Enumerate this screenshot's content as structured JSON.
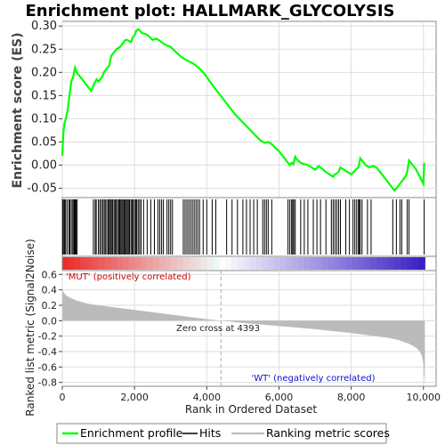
{
  "title": "Enrichment plot: HALLMARK_GLYCOLYSIS",
  "colors": {
    "es_line": "#00ff00",
    "hits": "#000000",
    "metric_fill": "#bbbbbb",
    "positive_label": "#d00000",
    "negative_label": "#1010d0",
    "zero_cross_line": "#aaaaaa",
    "grid": "#dddddd"
  },
  "annotations": {
    "positive": "'MUT' (positively correlated)",
    "negative": "'WT' (negatively correlated)",
    "zero_cross": "Zero cross at 4393"
  },
  "legend": {
    "items": [
      {
        "label": "Enrichment profile",
        "color": "#00ff00"
      },
      {
        "label": "Hits",
        "color": "#000000"
      },
      {
        "label": "Ranking metric scores",
        "color": "#bbbbbb"
      }
    ]
  },
  "chart_data": [
    {
      "type": "line",
      "ylabel": "Enrichment score (ES)",
      "ylim": [
        -0.07,
        0.31
      ],
      "yticks": [
        "0.30",
        "0.25",
        "0.20",
        "0.15",
        "0.10",
        "0.05",
        "0.00",
        "-0.05"
      ],
      "ytick_values": [
        0.3,
        0.25,
        0.2,
        0.15,
        0.1,
        0.05,
        0.0,
        -0.05
      ],
      "xlim": [
        0,
        10350
      ],
      "grid": true,
      "series": [
        {
          "x": [
            0,
            30,
            60,
            100,
            150,
            200,
            250,
            300,
            350,
            400,
            500,
            650,
            800,
            880,
            950,
            1000,
            1100,
            1150,
            1200,
            1300,
            1350,
            1400,
            1500,
            1600,
            1700,
            1750,
            1800,
            1900,
            1950,
            2000,
            2050,
            2100,
            2150,
            2200,
            2300,
            2400,
            2500,
            2600,
            2700,
            2800,
            2900,
            3000,
            3100,
            3200,
            3300,
            3400,
            3500,
            3600,
            3700,
            3800,
            3900,
            4000,
            4200,
            4400,
            4600,
            4800,
            5000,
            5200,
            5400,
            5500,
            5600,
            5700,
            5800,
            6000,
            6200,
            6300,
            6350,
            6400,
            6450,
            6500,
            6600,
            6700,
            6800,
            6900,
            7000,
            7100,
            7200,
            7300,
            7400,
            7500,
            7550,
            7600,
            7650,
            7700,
            7800,
            7900,
            8000,
            8100,
            8150,
            8200,
            8250,
            8300,
            8400,
            8500,
            8600,
            8700,
            8800,
            8900,
            9000,
            9100,
            9200,
            9300,
            9350,
            9400,
            9500,
            9550,
            9600,
            9700,
            9800,
            9900,
            10000,
            10020
          ],
          "y": [
            0.02,
            0.07,
            0.09,
            0.1,
            0.12,
            0.15,
            0.18,
            0.19,
            0.21,
            0.2,
            0.19,
            0.175,
            0.16,
            0.175,
            0.185,
            0.18,
            0.19,
            0.2,
            0.205,
            0.215,
            0.235,
            0.24,
            0.25,
            0.255,
            0.265,
            0.27,
            0.27,
            0.265,
            0.275,
            0.28,
            0.29,
            0.293,
            0.29,
            0.285,
            0.283,
            0.278,
            0.27,
            0.273,
            0.268,
            0.262,
            0.258,
            0.255,
            0.247,
            0.24,
            0.233,
            0.228,
            0.224,
            0.22,
            0.215,
            0.208,
            0.2,
            0.19,
            0.168,
            0.148,
            0.128,
            0.108,
            0.092,
            0.076,
            0.06,
            0.052,
            0.048,
            0.05,
            0.045,
            0.03,
            0.01,
            0.0,
            0.005,
            0.002,
            0.018,
            0.012,
            0.005,
            0.002,
            0.0,
            -0.005,
            -0.01,
            -0.002,
            -0.008,
            -0.015,
            -0.02,
            -0.025,
            -0.02,
            -0.018,
            -0.015,
            -0.005,
            -0.01,
            -0.015,
            -0.02,
            -0.012,
            -0.008,
            -0.005,
            0.015,
            0.01,
            0.0,
            -0.005,
            -0.002,
            -0.005,
            -0.015,
            -0.025,
            -0.035,
            -0.045,
            -0.055,
            -0.045,
            -0.04,
            -0.035,
            -0.025,
            -0.015,
            0.01,
            0.0,
            -0.01,
            -0.025,
            -0.04,
            0.005
          ]
        }
      ]
    },
    {
      "type": "bar",
      "name": "hits",
      "hit_positions": [
        10,
        30,
        60,
        90,
        130,
        180,
        210,
        250,
        290,
        320,
        340,
        360,
        380,
        410,
        860,
        910,
        940,
        1000,
        1040,
        1080,
        1120,
        1160,
        1190,
        1230,
        1270,
        1300,
        1330,
        1360,
        1390,
        1430,
        1460,
        1490,
        1530,
        1560,
        1590,
        1620,
        1650,
        1680,
        1710,
        1740,
        1770,
        1800,
        1830,
        1860,
        1900,
        1930,
        1960,
        2000,
        2030,
        2060,
        2100,
        2140,
        2180,
        2250,
        2350,
        2450,
        2550,
        2650,
        2700,
        2750,
        2800,
        2900,
        2950,
        3000,
        3050,
        3350,
        3400,
        3450,
        3500,
        3550,
        3600,
        3650,
        3700,
        3750,
        3800,
        3900,
        4000,
        4150,
        4250,
        4550,
        4700,
        4850,
        5000,
        5100,
        5200,
        5300,
        5400,
        5550,
        5600,
        5650,
        5700,
        5800,
        6250,
        6300,
        6350,
        6380,
        6410,
        6450,
        6600,
        6700,
        6800,
        6950,
        7050,
        7150,
        7300,
        7450,
        7500,
        7550,
        7600,
        7650,
        7700,
        7850,
        7950,
        8050,
        8100,
        8150,
        8200,
        8220,
        8250,
        8300,
        8450,
        8550,
        9150,
        9250,
        9350,
        9400,
        9550,
        9600,
        10020
      ]
    },
    {
      "type": "area",
      "name": "metric",
      "ylabel": "Ranked list metric (Signal2Noise)",
      "xlabel": "Rank in Ordered Dataset",
      "ylim": [
        -0.85,
        0.65
      ],
      "yticks": [
        "0.6",
        "0.4",
        "0.2",
        "0.0",
        "-0.2",
        "-0.4",
        "-0.6",
        "-0.8"
      ],
      "ytick_values": [
        0.6,
        0.4,
        0.2,
        0.0,
        -0.2,
        -0.4,
        -0.6,
        -0.8
      ],
      "xticks": [
        "0",
        "2,000",
        "4,000",
        "6,000",
        "8,000",
        "10,000"
      ],
      "xtick_values": [
        0,
        2000,
        4000,
        6000,
        8000,
        10000
      ],
      "xlim": [
        0,
        10350
      ],
      "zero_cross": 4393,
      "x": [
        0,
        20,
        50,
        100,
        200,
        400,
        700,
        1000,
        1500,
        2000,
        2500,
        3000,
        3500,
        4000,
        4393,
        5000,
        6000,
        7000,
        8000,
        8500,
        9000,
        9300,
        9600,
        9800,
        9900,
        9950,
        10000,
        10020,
        10040
      ],
      "y": [
        0.45,
        0.38,
        0.36,
        0.33,
        0.3,
        0.26,
        0.22,
        0.2,
        0.17,
        0.14,
        0.11,
        0.08,
        0.05,
        0.02,
        0.0,
        -0.03,
        -0.07,
        -0.11,
        -0.16,
        -0.19,
        -0.22,
        -0.25,
        -0.3,
        -0.35,
        -0.4,
        -0.45,
        -0.55,
        -0.7,
        -0.82
      ]
    }
  ]
}
